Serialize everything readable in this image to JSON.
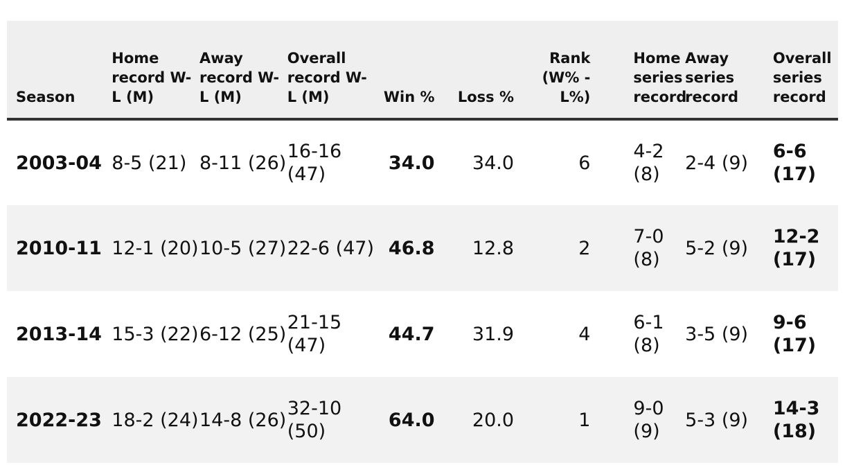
{
  "table": {
    "headers": {
      "season": "Season",
      "home_record": "Home record W-L (M)",
      "away_record": "Away record W-L (M)",
      "overall_record": "Overall record W-L (M)",
      "win_pct": "Win %",
      "loss_pct": "Loss %",
      "rank": "Rank (W% - L%)",
      "home_series": "Home series record",
      "away_series": "Away series record",
      "overall_series": "Overall series record"
    },
    "rows": [
      {
        "season": "2003-04",
        "home": "8-5 (21)",
        "away": "8-11 (26)",
        "overall": "16-16 (47)",
        "win": "34.0",
        "loss": "34.0",
        "rank": "6",
        "home_series": "4-2 (8)",
        "away_series": "2-4 (9)",
        "overall_series": "6-6 (17)"
      },
      {
        "season": "2010-11",
        "home": "12-1 (20)",
        "away": "10-5 (27)",
        "overall": "22-6 (47)",
        "win": "46.8",
        "loss": "12.8",
        "rank": "2",
        "home_series": "7-0 (8)",
        "away_series": "5-2 (9)",
        "overall_series": "12-2 (17)"
      },
      {
        "season": "2013-14",
        "home": "15-3 (22)",
        "away": "6-12 (25)",
        "overall": "21-15 (47)",
        "win": "44.7",
        "loss": "31.9",
        "rank": "4",
        "home_series": "6-1 (8)",
        "away_series": "3-5 (9)",
        "overall_series": "9-6 (17)"
      },
      {
        "season": "2022-23",
        "home": "18-2 (24)",
        "away": "14-8 (26)",
        "overall": "32-10 (50)",
        "win": "64.0",
        "loss": "20.0",
        "rank": "1",
        "home_series": "9-0 (9)",
        "away_series": "5-3 (9)",
        "overall_series": "14-3 (18)"
      }
    ]
  }
}
